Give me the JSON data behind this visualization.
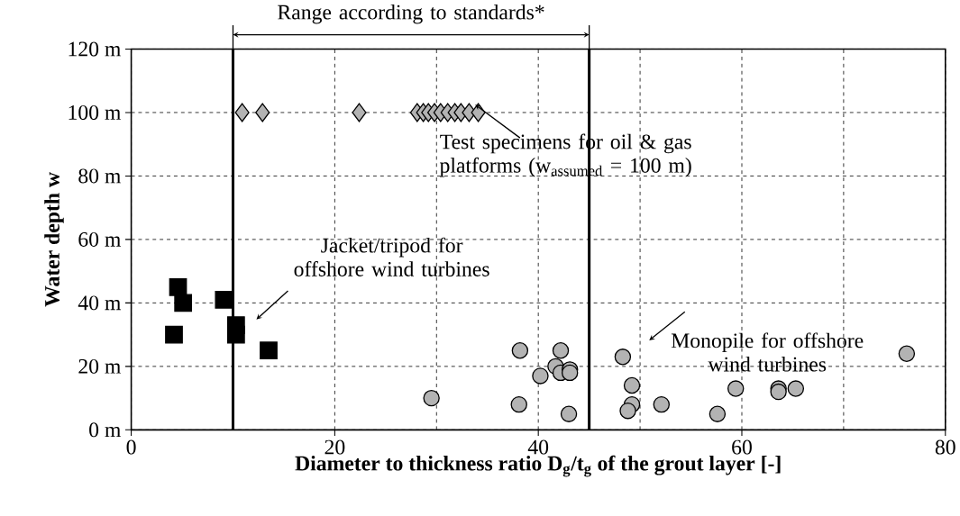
{
  "chart_data": {
    "type": "scatter",
    "xlabel": "**Diameter to thickness ratio D$_{g}$/t$_{g}$  of the grout layer [-]**",
    "ylabel": "**Water depth w**",
    "xlim": [
      0,
      80
    ],
    "xticks": [
      0,
      20,
      40,
      60,
      80
    ],
    "ylim": [
      0,
      120
    ],
    "yticks": [
      {
        "value": 0,
        "label": "0 m"
      },
      {
        "value": 20,
        "label": "20 m"
      },
      {
        "value": 40,
        "label": "40 m"
      },
      {
        "value": 60,
        "label": "60 m"
      },
      {
        "value": 80,
        "label": "80 m"
      },
      {
        "value": 100,
        "label": "100 m"
      },
      {
        "value": 120,
        "label": "120 m"
      }
    ],
    "grid": true,
    "series": [
      {
        "color": "#000000",
        "marker": "square",
        "x": [
          4.6,
          5.1,
          9.1,
          4.2,
          10.3,
          10.3,
          13.5
        ],
        "values": [
          45,
          40,
          41,
          30,
          33,
          30,
          25
        ]
      },
      {
        "color": "#b3b3b3",
        "marker": "diamond",
        "x": [
          10.9,
          12.9,
          22.4,
          28.1,
          28.7,
          29.2,
          29.8,
          30.4,
          31.1,
          31.8,
          32.4,
          33.2,
          34.1
        ],
        "values": [
          100,
          100,
          100,
          100,
          100,
          100,
          100,
          100,
          100,
          100,
          100,
          100,
          100
        ]
      },
      {
        "color": "#b3b3b3",
        "marker": "circle",
        "x": [
          29.5,
          38.2,
          38.1,
          40.2,
          42.2,
          41.7,
          42.2,
          43.1,
          43.1,
          43.0,
          48.3,
          49.2,
          49.2,
          48.8,
          52.1,
          57.6,
          59.4,
          63.6,
          63.6,
          65.3,
          76.2
        ],
        "values": [
          10,
          25,
          8,
          17,
          25,
          20,
          18,
          19,
          18,
          5,
          23,
          14,
          8,
          6,
          8,
          5,
          13,
          13,
          12,
          13,
          24
        ]
      }
    ],
    "ref_lines": [
      {
        "axis": "x",
        "value": 10,
        "color": "#000000"
      },
      {
        "axis": "x",
        "value": 45,
        "color": "#000000"
      }
    ],
    "annotations": [
      "Range according to standards*",
      "Test specimens for oil & gas platforms (w$_{assumed}$ = 100 m)",
      "Jacket/tripod for offshore wind turbines",
      "Monopile for offshore wind turbines"
    ]
  }
}
